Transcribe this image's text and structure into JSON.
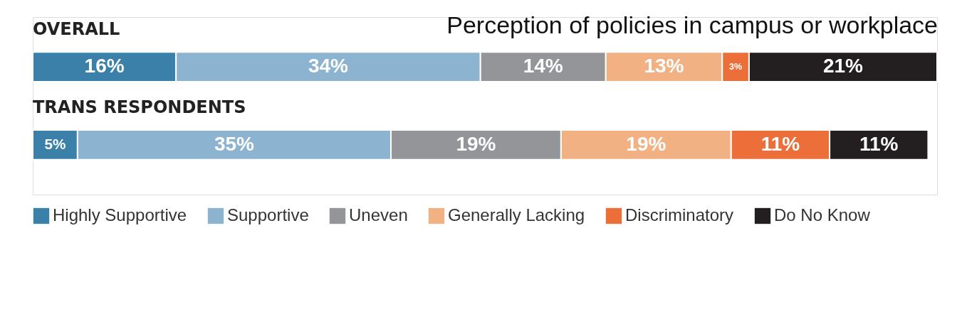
{
  "chart_data": {
    "type": "bar",
    "title": "Perception of policies in campus or workplace",
    "orientation": "horizontal",
    "stacked": true,
    "categories": [
      "OVERALL",
      "TRANS RESPONDENTS"
    ],
    "series": [
      {
        "name": "Highly Supportive",
        "color": "#3a80a8",
        "values": [
          16,
          5
        ],
        "value_labels": [
          "16%",
          "5%"
        ]
      },
      {
        "name": "Supportive",
        "color": "#8cb3d0",
        "values": [
          34,
          35
        ],
        "value_labels": [
          "34%",
          "35%"
        ]
      },
      {
        "name": "Uneven",
        "color": "#939598",
        "values": [
          14,
          19
        ],
        "value_labels": [
          "14%",
          "19%"
        ]
      },
      {
        "name": "Generally Lacking",
        "color": "#f2b183",
        "values": [
          13,
          19
        ],
        "value_labels": [
          "13%",
          "19%"
        ]
      },
      {
        "name": "Discriminatory",
        "color": "#ec6f3a",
        "values": [
          3,
          11
        ],
        "value_labels": [
          "3%",
          "11%"
        ]
      },
      {
        "name": "Do No Know",
        "color": "#231f20",
        "values": [
          21,
          11
        ],
        "value_labels": [
          "21%",
          "11%"
        ]
      }
    ],
    "xlim": [
      0,
      101
    ],
    "tick_labels": false,
    "legend": "bottom"
  }
}
